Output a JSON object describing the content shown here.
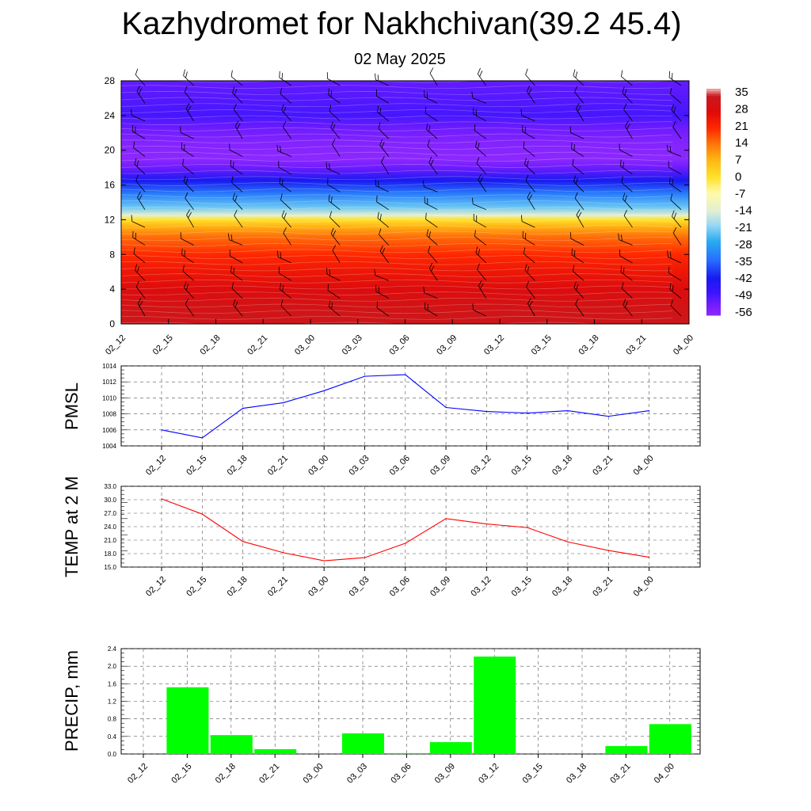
{
  "page": {
    "title": "Kazhydromet for Nakhchivan(39.2 45.4)",
    "subtitle": "02 May 2025"
  },
  "colors": {
    "pmsl_line": "#0000ff",
    "temp_line": "#ff0000",
    "precip_bar": "#00ff00",
    "grid": "#000000"
  },
  "chart_data": [
    {
      "type": "heatmap",
      "title": "",
      "x": [
        "02_12",
        "02_15",
        "02_18",
        "02_21",
        "03_00",
        "03_03",
        "03_06",
        "03_09",
        "03_12",
        "03_15",
        "03_18",
        "03_21",
        "04_00"
      ],
      "y_ticks": [
        0,
        4,
        8,
        12,
        16,
        20,
        24,
        28
      ],
      "ylim": [
        0,
        28
      ],
      "colorbar": {
        "labels": [
          35,
          28,
          21,
          14,
          7,
          0,
          -7,
          -14,
          -21,
          -28,
          -35,
          -42,
          -49,
          -56
        ],
        "range": [
          -60,
          38
        ]
      },
      "temperature_profile": [
        {
          "level": 0,
          "value": 34
        },
        {
          "level": 2,
          "value": 32
        },
        {
          "level": 4,
          "value": 29
        },
        {
          "level": 6,
          "value": 25
        },
        {
          "level": 8,
          "value": 21
        },
        {
          "level": 10,
          "value": 15
        },
        {
          "level": 11,
          "value": 9
        },
        {
          "level": 12,
          "value": 0
        },
        {
          "level": 12.5,
          "value": -14
        },
        {
          "level": 13.5,
          "value": -24
        },
        {
          "level": 15,
          "value": -34
        },
        {
          "level": 16.5,
          "value": -44
        },
        {
          "level": 18,
          "value": -55
        },
        {
          "level": 19,
          "value": -60
        },
        {
          "level": 21,
          "value": -58
        },
        {
          "level": 22.5,
          "value": -55
        },
        {
          "level": 24,
          "value": -51
        },
        {
          "level": 28,
          "value": -54
        }
      ],
      "wind_barbs": true,
      "grid": false
    },
    {
      "type": "line",
      "ylabel": "PMSL",
      "x": [
        "02_12",
        "02_15",
        "02_18",
        "02_21",
        "03_00",
        "03_03",
        "03_06",
        "03_09",
        "03_12",
        "03_15",
        "03_18",
        "03_21",
        "04_00"
      ],
      "series": [
        {
          "values": [
            1006.0,
            1005.0,
            1008.7,
            1009.4,
            1010.9,
            1012.7,
            1012.9,
            1008.8,
            1008.3,
            1008.1,
            1008.4,
            1007.7,
            1008.4
          ]
        }
      ],
      "y_ticks": [
        "1004",
        "1006",
        "1008",
        "1010",
        "1012",
        "1014"
      ],
      "ylim": [
        1004,
        1014
      ],
      "grid": true
    },
    {
      "type": "line",
      "ylabel": "TEMP at 2 M",
      "x": [
        "02_12",
        "02_15",
        "02_18",
        "02_21",
        "03_00",
        "03_03",
        "03_06",
        "03_09",
        "03_12",
        "03_15",
        "03_18",
        "03_21",
        "04_00"
      ],
      "series": [
        {
          "values": [
            30.2,
            26.8,
            20.7,
            18.2,
            16.4,
            17.1,
            20.3,
            25.8,
            24.6,
            23.8,
            20.6,
            18.7,
            17.2
          ]
        }
      ],
      "y_ticks": [
        "15.0",
        "18.0",
        "21.0",
        "24.0",
        "27.0",
        "30.0",
        "33.0"
      ],
      "ylim": [
        15,
        33
      ],
      "grid": true
    },
    {
      "type": "bar",
      "ylabel": "PRECIP, mm",
      "categories": [
        "02_12",
        "02_15",
        "02_18",
        "02_21",
        "03_00",
        "03_03",
        "03_06",
        "03_09",
        "03_12",
        "03_15",
        "03_18",
        "03_21",
        "04_00"
      ],
      "values": [
        0,
        1.52,
        0.43,
        0.11,
        0,
        0.47,
        0.02,
        0.27,
        2.22,
        0,
        0,
        0.18,
        0.68
      ],
      "y_ticks": [
        "0.0",
        "0.4",
        "0.8",
        "1.2",
        "1.6",
        "2.0",
        "2.4"
      ],
      "ylim": [
        0,
        2.4
      ],
      "grid": true
    }
  ]
}
